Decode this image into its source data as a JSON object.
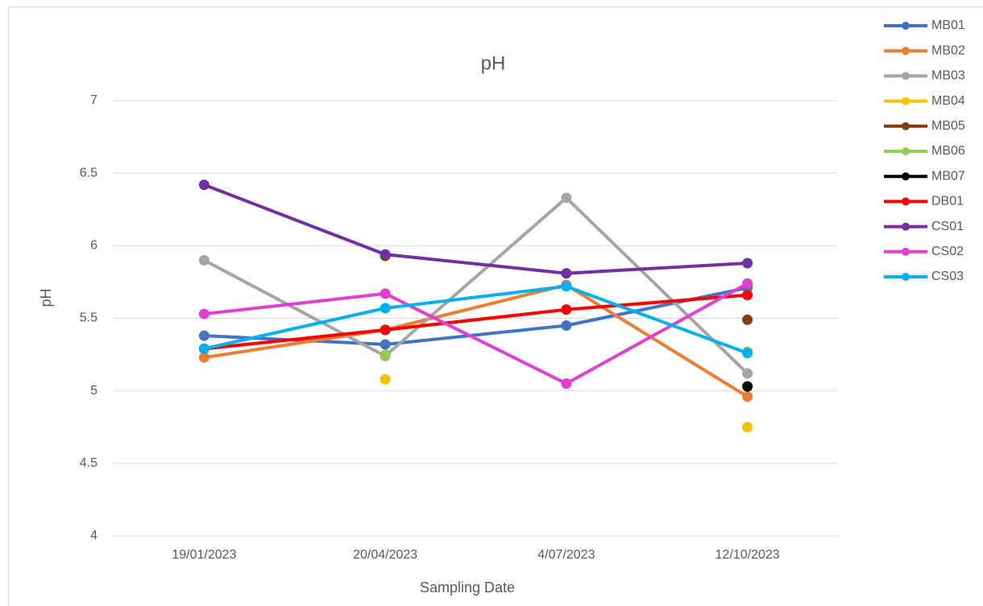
{
  "chart_data": {
    "type": "line",
    "title": "pH",
    "x_label": "Sampling Date",
    "y_label": "pH",
    "categories": [
      "19/01/2023",
      "20/04/2023",
      "4/07/2023",
      "12/10/2023"
    ],
    "ylim": [
      4,
      7
    ],
    "yticks": [
      4,
      4.5,
      5,
      5.5,
      6,
      6.5,
      7
    ],
    "grid": true,
    "legend": "right",
    "series": [
      {
        "name": "MB01",
        "color": "#4472c4",
        "values": [
          5.38,
          5.32,
          5.45,
          5.71
        ]
      },
      {
        "name": "MB02",
        "color": "#ed7d31",
        "values": [
          5.23,
          5.42,
          5.73,
          4.96
        ]
      },
      {
        "name": "MB03",
        "color": "#a5a5a5",
        "values": [
          5.9,
          5.24,
          6.33,
          5.12
        ]
      },
      {
        "name": "MB04",
        "color": "#ffc000",
        "values": [
          null,
          5.08,
          null,
          4.75
        ]
      },
      {
        "name": "MB05",
        "color": "#843c0c",
        "values": [
          null,
          5.93,
          null,
          5.49
        ]
      },
      {
        "name": "MB06",
        "color": "#92d050",
        "values": [
          null,
          5.25,
          null,
          5.27
        ]
      },
      {
        "name": "MB07",
        "color": "#000000",
        "values": [
          null,
          5.42,
          null,
          5.03
        ]
      },
      {
        "name": "DB01",
        "color": "#ff0000",
        "values": [
          5.29,
          5.42,
          5.56,
          5.66
        ]
      },
      {
        "name": "CS01",
        "color": "#7030a0",
        "values": [
          6.42,
          5.94,
          5.81,
          5.88
        ]
      },
      {
        "name": "CS02",
        "color": "#e040d0",
        "values": [
          5.53,
          5.67,
          5.05,
          5.74
        ]
      },
      {
        "name": "CS03",
        "color": "#00b0f0",
        "values": [
          5.29,
          5.57,
          5.72,
          5.26
        ]
      }
    ]
  }
}
